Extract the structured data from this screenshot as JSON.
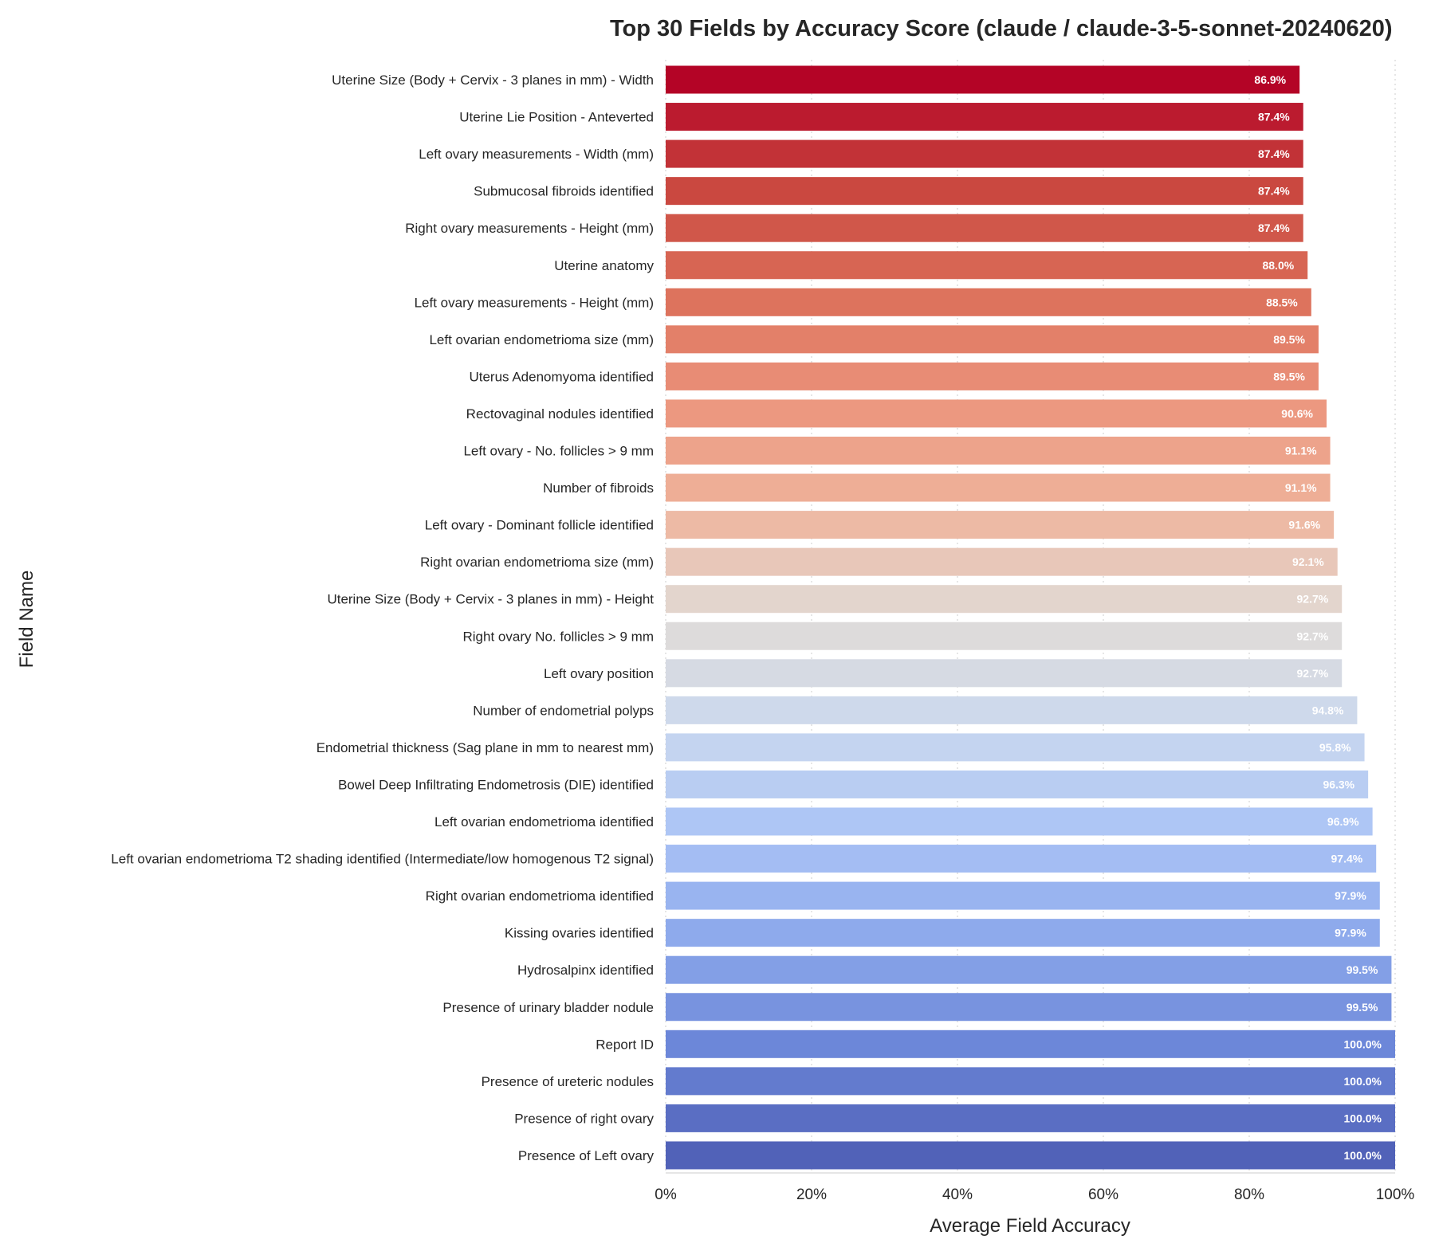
{
  "chart_data": {
    "type": "bar",
    "orientation": "horizontal",
    "title": "Top 30 Fields by Accuracy Score (claude / claude-3-5-sonnet-20240620)",
    "xlabel": "Average Field Accuracy",
    "ylabel": "Field Name",
    "xlim": [
      0,
      100
    ],
    "x_ticks": [
      "0%",
      "20%",
      "40%",
      "60%",
      "80%",
      "100%"
    ],
    "x_tick_values": [
      0,
      20,
      40,
      60,
      80,
      100
    ],
    "grid": "vertical dotted",
    "categories": [
      "Uterine Size (Body + Cervix - 3 planes in mm) - Width",
      "Uterine Lie Position - Anteverted",
      "Left ovary measurements - Width (mm)",
      "Submucosal fibroids identified",
      "Right ovary measurements - Height (mm)",
      "Uterine anatomy",
      "Left ovary measurements - Height (mm)",
      "Left ovarian endometrioma size (mm)",
      "Uterus Adenomyoma identified",
      "Rectovaginal nodules identified",
      "Left ovary - No. follicles > 9 mm",
      "Number of fibroids",
      "Left ovary - Dominant follicle identified",
      "Right ovarian endometrioma size (mm)",
      "Uterine Size (Body + Cervix - 3 planes in mm) - Height",
      "Right ovary No. follicles > 9 mm",
      "Left ovary position",
      "Number of endometrial polyps",
      "Endometrial thickness (Sag plane in mm to nearest mm)",
      "Bowel Deep Infiltrating Endometrosis (DIE) identified",
      "Left ovarian endometrioma identified",
      "Left ovarian endometrioma T2 shading identified (Intermediate/low homogenous T2 signal)",
      "Right ovarian endometrioma identified",
      "Kissing ovaries identified",
      "Hydrosalpinx identified",
      "Presence of urinary bladder nodule",
      "Report ID",
      "Presence of ureteric nodules",
      "Presence of right ovary",
      "Presence of  Left ovary"
    ],
    "values": [
      86.9,
      87.4,
      87.4,
      87.4,
      87.4,
      88.0,
      88.5,
      89.5,
      89.5,
      90.6,
      91.1,
      91.1,
      91.6,
      92.1,
      92.7,
      92.7,
      92.7,
      94.8,
      95.8,
      96.3,
      96.9,
      97.4,
      97.9,
      97.9,
      99.5,
      99.5,
      100.0,
      100.0,
      100.0,
      100.0
    ],
    "data_labels": [
      "86.9%",
      "87.4%",
      "87.4%",
      "87.4%",
      "87.4%",
      "88.0%",
      "88.5%",
      "89.5%",
      "89.5%",
      "90.6%",
      "91.1%",
      "91.1%",
      "91.6%",
      "92.1%",
      "92.7%",
      "92.7%",
      "92.7%",
      "94.8%",
      "95.8%",
      "96.3%",
      "96.9%",
      "97.4%",
      "97.9%",
      "97.9%",
      "99.5%",
      "99.5%",
      "100.0%",
      "100.0%",
      "100.0%",
      "100.0%"
    ],
    "colormap": "coolwarm (reversed, red at top to blue at bottom)",
    "colors": {
      "low_end": "#b40426",
      "high_end": "#3b4cc0",
      "grid": "#cccccc",
      "axis": "#262626",
      "value_text": "#ffffff"
    }
  }
}
